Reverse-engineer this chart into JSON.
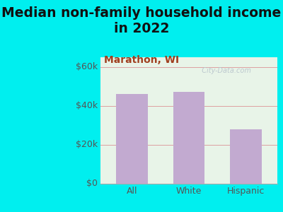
{
  "title": "Median non-family household income\nin 2022",
  "subtitle": "Marathon, WI",
  "categories": [
    "All",
    "White",
    "Hispanic"
  ],
  "values": [
    46000,
    47000,
    28000
  ],
  "bar_color": "#c2aad0",
  "background_outer": "#00EFEF",
  "background_inner": "#e8f4e8",
  "yticks": [
    0,
    20000,
    40000,
    60000
  ],
  "ytick_labels": [
    "$0",
    "$20k",
    "$40k",
    "$60k"
  ],
  "ylim": [
    0,
    65000
  ],
  "title_fontsize": 13.5,
  "subtitle_fontsize": 10,
  "tick_fontsize": 9,
  "watermark": "  City-Data.com",
  "title_color": "#111111",
  "subtitle_color": "#a04020",
  "tick_color": "#555555",
  "grid_color": "#dda0a0",
  "xlim_left": -0.55,
  "xlim_right": 2.55
}
